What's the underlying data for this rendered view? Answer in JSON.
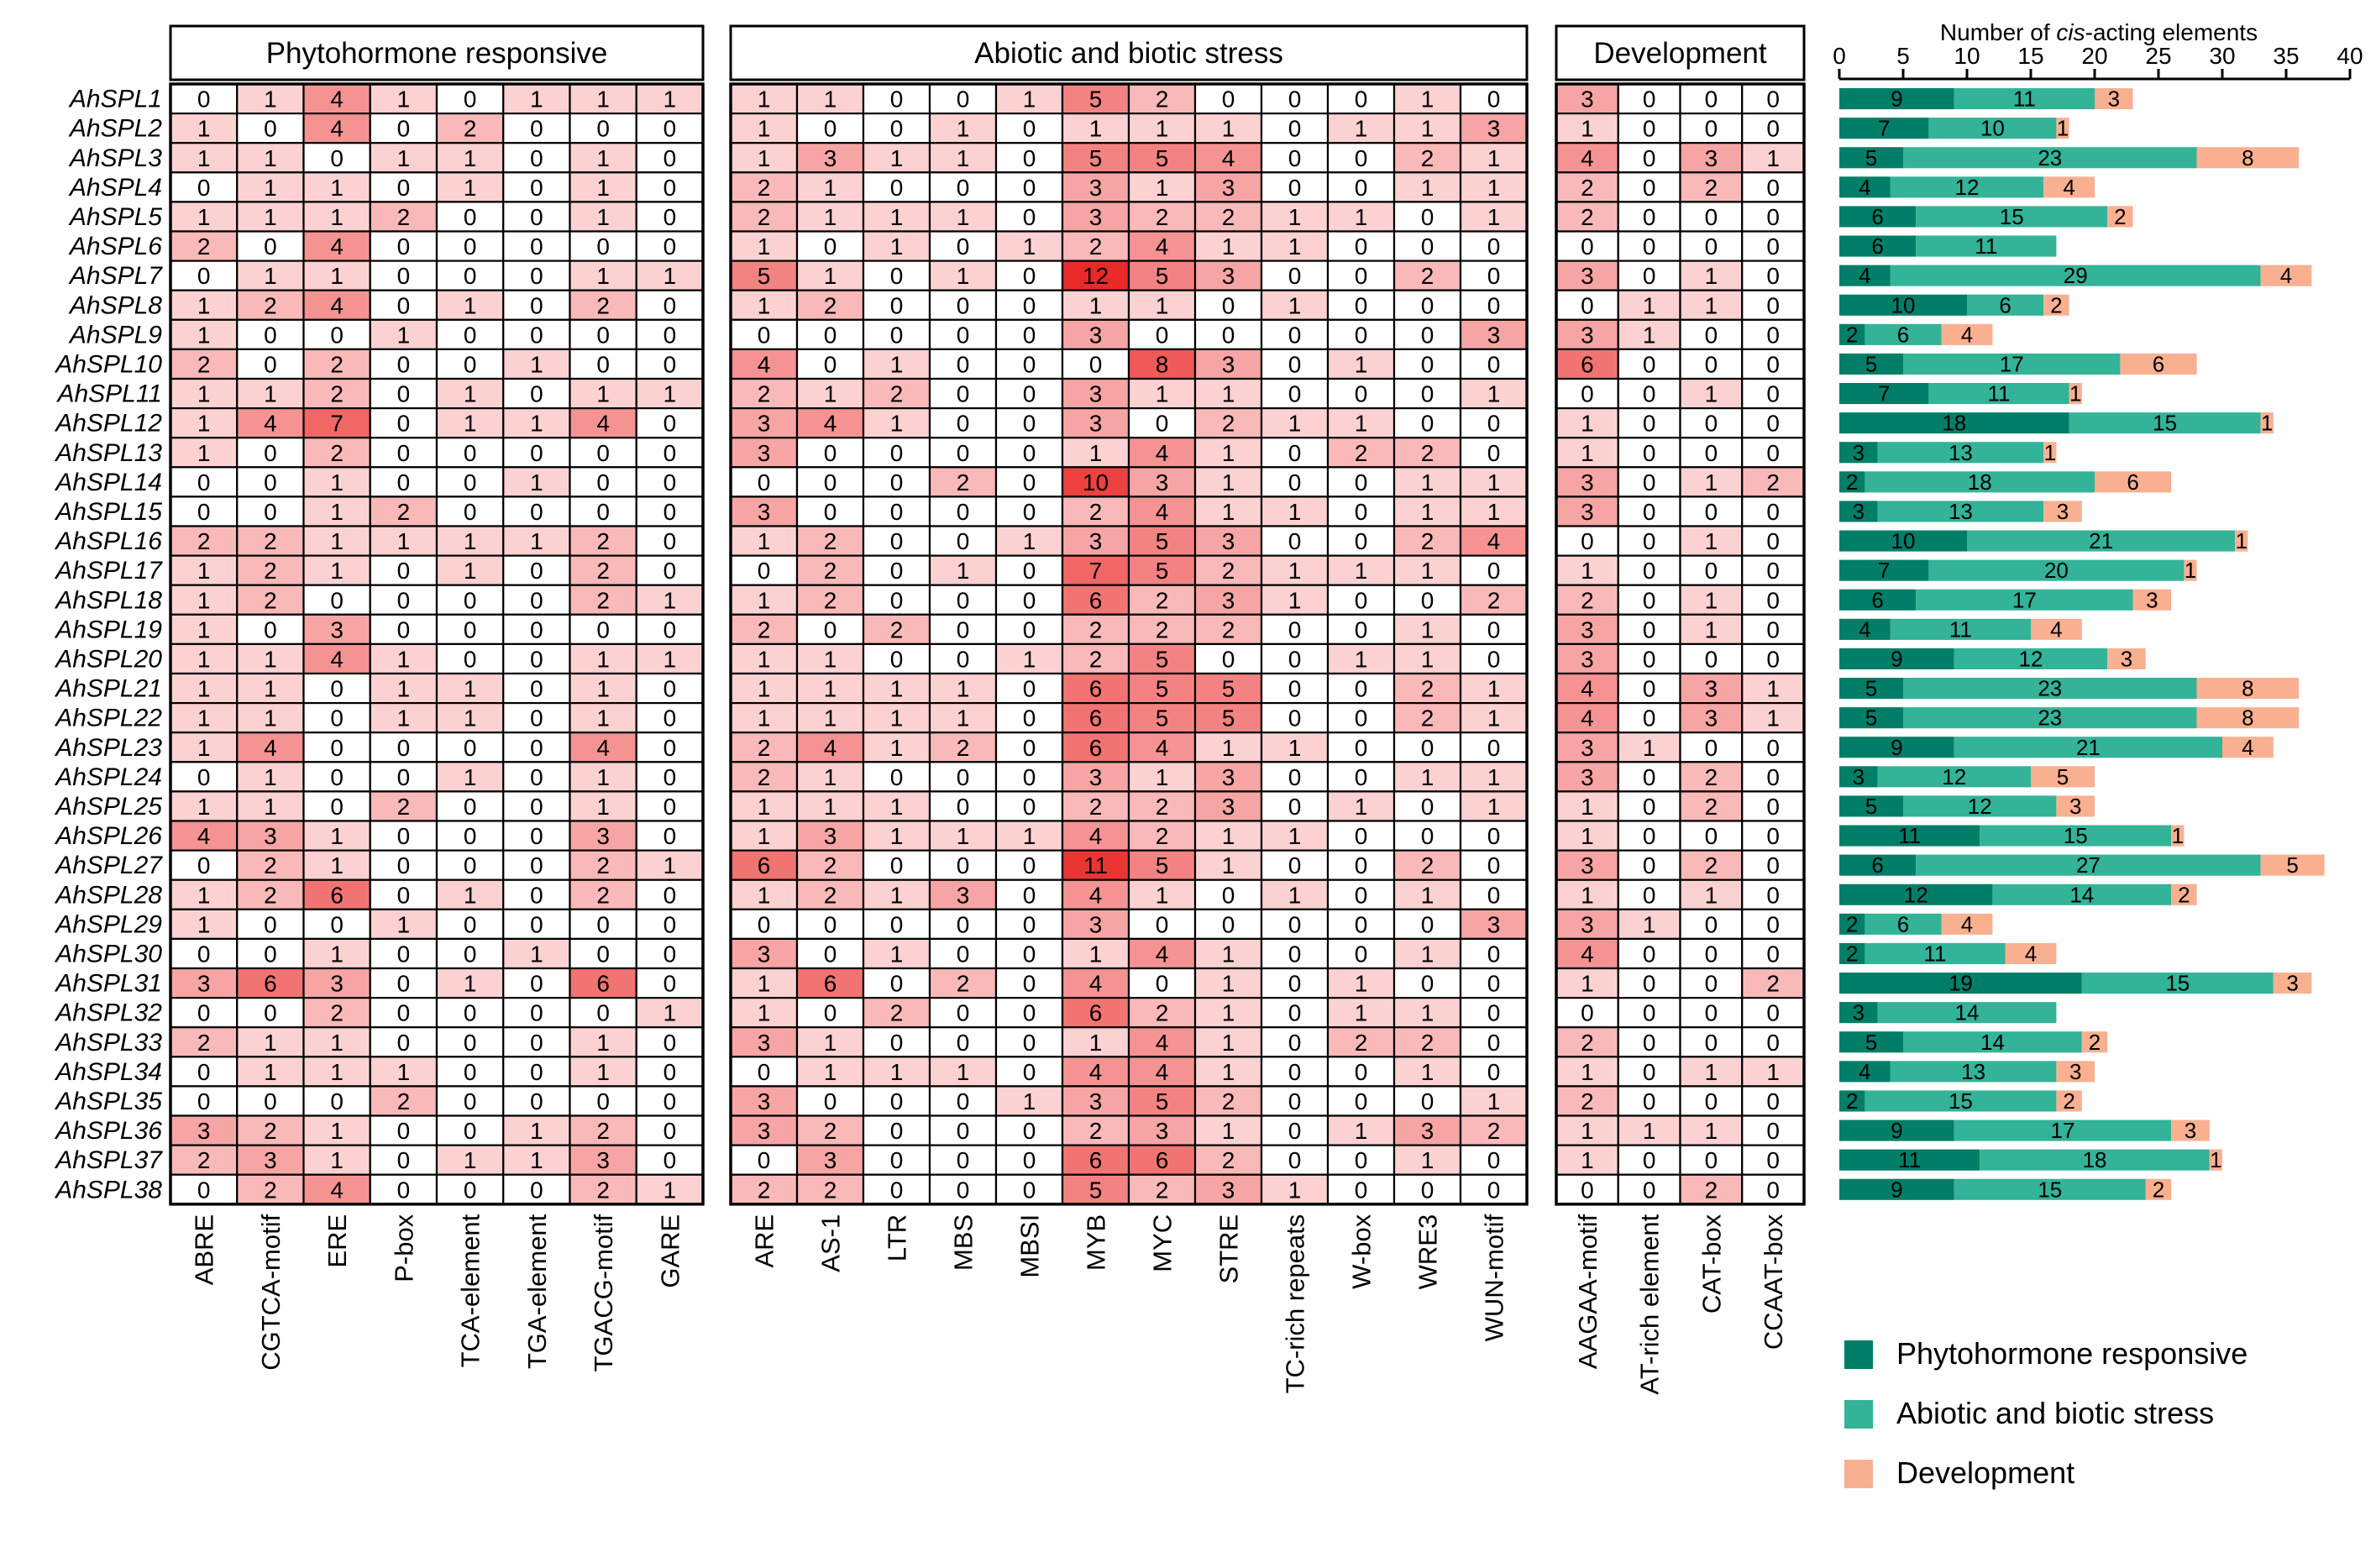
{
  "chart_data": [
    {
      "type": "heatmap",
      "title": "Phytohormone responsive",
      "columns": [
        "ABRE",
        "CGTCA-motif",
        "ERE",
        "P-box",
        "TCA-element",
        "TGA-element",
        "TGACG-motif",
        "GARE"
      ],
      "values": [
        [
          0,
          1,
          4,
          1,
          0,
          1,
          1,
          1
        ],
        [
          1,
          0,
          4,
          0,
          2,
          0,
          0,
          0
        ],
        [
          1,
          1,
          0,
          1,
          1,
          0,
          1,
          0
        ],
        [
          0,
          1,
          1,
          0,
          1,
          0,
          1,
          0
        ],
        [
          1,
          1,
          1,
          2,
          0,
          0,
          1,
          0
        ],
        [
          2,
          0,
          4,
          0,
          0,
          0,
          0,
          0
        ],
        [
          0,
          1,
          1,
          0,
          0,
          0,
          1,
          1
        ],
        [
          1,
          2,
          4,
          0,
          1,
          0,
          2,
          0
        ],
        [
          1,
          0,
          0,
          1,
          0,
          0,
          0,
          0
        ],
        [
          2,
          0,
          2,
          0,
          0,
          1,
          0,
          0
        ],
        [
          1,
          1,
          2,
          0,
          1,
          0,
          1,
          1
        ],
        [
          1,
          4,
          7,
          0,
          1,
          1,
          4,
          0
        ],
        [
          1,
          0,
          2,
          0,
          0,
          0,
          0,
          0
        ],
        [
          0,
          0,
          1,
          0,
          0,
          1,
          0,
          0
        ],
        [
          0,
          0,
          1,
          2,
          0,
          0,
          0,
          0
        ],
        [
          2,
          2,
          1,
          1,
          1,
          1,
          2,
          0
        ],
        [
          1,
          2,
          1,
          0,
          1,
          0,
          2,
          0
        ],
        [
          1,
          2,
          0,
          0,
          0,
          0,
          2,
          1
        ],
        [
          1,
          0,
          3,
          0,
          0,
          0,
          0,
          0
        ],
        [
          1,
          1,
          4,
          1,
          0,
          0,
          1,
          1
        ],
        [
          1,
          1,
          0,
          1,
          1,
          0,
          1,
          0
        ],
        [
          1,
          1,
          0,
          1,
          1,
          0,
          1,
          0
        ],
        [
          1,
          4,
          0,
          0,
          0,
          0,
          4,
          0
        ],
        [
          0,
          1,
          0,
          0,
          1,
          0,
          1,
          0
        ],
        [
          1,
          1,
          0,
          2,
          0,
          0,
          1,
          0
        ],
        [
          4,
          3,
          1,
          0,
          0,
          0,
          3,
          0
        ],
        [
          0,
          2,
          1,
          0,
          0,
          0,
          2,
          1
        ],
        [
          1,
          2,
          6,
          0,
          1,
          0,
          2,
          0
        ],
        [
          1,
          0,
          0,
          1,
          0,
          0,
          0,
          0
        ],
        [
          0,
          0,
          1,
          0,
          0,
          1,
          0,
          0
        ],
        [
          3,
          6,
          3,
          0,
          1,
          0,
          6,
          0
        ],
        [
          0,
          0,
          2,
          0,
          0,
          0,
          0,
          1
        ],
        [
          2,
          1,
          1,
          0,
          0,
          0,
          1,
          0
        ],
        [
          0,
          1,
          1,
          1,
          0,
          0,
          1,
          0
        ],
        [
          0,
          0,
          0,
          2,
          0,
          0,
          0,
          0
        ],
        [
          3,
          2,
          1,
          0,
          0,
          1,
          2,
          0
        ],
        [
          2,
          3,
          1,
          0,
          1,
          1,
          3,
          0
        ],
        [
          0,
          2,
          4,
          0,
          0,
          0,
          2,
          1
        ]
      ]
    },
    {
      "type": "heatmap",
      "title": "Abiotic and biotic stress",
      "columns": [
        "ARE",
        "AS-1",
        "LTR",
        "MBS",
        "MBSI",
        "MYB",
        "MYC",
        "STRE",
        "TC-rich repeats",
        "W-box",
        "WRE3",
        "WUN-motif"
      ],
      "values": [
        [
          1,
          1,
          0,
          0,
          1,
          5,
          2,
          0,
          0,
          0,
          1,
          0
        ],
        [
          1,
          0,
          0,
          1,
          0,
          1,
          1,
          1,
          0,
          1,
          1,
          3
        ],
        [
          1,
          3,
          1,
          1,
          0,
          5,
          5,
          4,
          0,
          0,
          2,
          1
        ],
        [
          2,
          1,
          0,
          0,
          0,
          3,
          1,
          3,
          0,
          0,
          1,
          1
        ],
        [
          2,
          1,
          1,
          1,
          0,
          3,
          2,
          2,
          1,
          1,
          0,
          1
        ],
        [
          1,
          0,
          1,
          0,
          1,
          2,
          4,
          1,
          1,
          0,
          0,
          0
        ],
        [
          5,
          1,
          0,
          1,
          0,
          12,
          5,
          3,
          0,
          0,
          2,
          0
        ],
        [
          1,
          2,
          0,
          0,
          0,
          1,
          1,
          0,
          1,
          0,
          0,
          0
        ],
        [
          0,
          0,
          0,
          0,
          0,
          3,
          0,
          0,
          0,
          0,
          0,
          3
        ],
        [
          4,
          0,
          1,
          0,
          0,
          0,
          8,
          3,
          0,
          1,
          0,
          0
        ],
        [
          2,
          1,
          2,
          0,
          0,
          3,
          1,
          1,
          0,
          0,
          0,
          1
        ],
        [
          3,
          4,
          1,
          0,
          0,
          3,
          0,
          2,
          1,
          1,
          0,
          0
        ],
        [
          3,
          0,
          0,
          0,
          0,
          1,
          4,
          1,
          0,
          2,
          2,
          0
        ],
        [
          0,
          0,
          0,
          2,
          0,
          10,
          3,
          1,
          0,
          0,
          1,
          1
        ],
        [
          3,
          0,
          0,
          0,
          0,
          2,
          4,
          1,
          1,
          0,
          1,
          1
        ],
        [
          1,
          2,
          0,
          0,
          1,
          3,
          5,
          3,
          0,
          0,
          2,
          4
        ],
        [
          0,
          2,
          0,
          1,
          0,
          7,
          5,
          2,
          1,
          1,
          1,
          0
        ],
        [
          1,
          2,
          0,
          0,
          0,
          6,
          2,
          3,
          1,
          0,
          0,
          2
        ],
        [
          2,
          0,
          2,
          0,
          0,
          2,
          2,
          2,
          0,
          0,
          1,
          0
        ],
        [
          1,
          1,
          0,
          0,
          1,
          2,
          5,
          0,
          0,
          1,
          1,
          0
        ],
        [
          1,
          1,
          1,
          1,
          0,
          6,
          5,
          5,
          0,
          0,
          2,
          1
        ],
        [
          1,
          1,
          1,
          1,
          0,
          6,
          5,
          5,
          0,
          0,
          2,
          1
        ],
        [
          2,
          4,
          1,
          2,
          0,
          6,
          4,
          1,
          1,
          0,
          0,
          0
        ],
        [
          2,
          1,
          0,
          0,
          0,
          3,
          1,
          3,
          0,
          0,
          1,
          1
        ],
        [
          1,
          1,
          1,
          0,
          0,
          2,
          2,
          3,
          0,
          1,
          0,
          1
        ],
        [
          1,
          3,
          1,
          1,
          1,
          4,
          2,
          1,
          1,
          0,
          0,
          0
        ],
        [
          6,
          2,
          0,
          0,
          0,
          11,
          5,
          1,
          0,
          0,
          2,
          0
        ],
        [
          1,
          2,
          1,
          3,
          0,
          4,
          1,
          0,
          1,
          0,
          1,
          0
        ],
        [
          0,
          0,
          0,
          0,
          0,
          3,
          0,
          0,
          0,
          0,
          0,
          3
        ],
        [
          3,
          0,
          1,
          0,
          0,
          1,
          4,
          1,
          0,
          0,
          1,
          0
        ],
        [
          1,
          6,
          0,
          2,
          0,
          4,
          0,
          1,
          0,
          1,
          0,
          0
        ],
        [
          1,
          0,
          2,
          0,
          0,
          6,
          2,
          1,
          0,
          1,
          1,
          0
        ],
        [
          3,
          1,
          0,
          0,
          0,
          1,
          4,
          1,
          0,
          2,
          2,
          0
        ],
        [
          0,
          1,
          1,
          1,
          0,
          4,
          4,
          1,
          0,
          0,
          1,
          0
        ],
        [
          3,
          0,
          0,
          0,
          1,
          3,
          5,
          2,
          0,
          0,
          0,
          1
        ],
        [
          3,
          2,
          0,
          0,
          0,
          2,
          3,
          1,
          0,
          1,
          3,
          2
        ],
        [
          0,
          3,
          0,
          0,
          0,
          6,
          6,
          2,
          0,
          0,
          1,
          0
        ],
        [
          2,
          2,
          0,
          0,
          0,
          5,
          2,
          3,
          1,
          0,
          0,
          0
        ]
      ]
    },
    {
      "type": "heatmap",
      "title": "Development",
      "columns": [
        "AAGAA-motif",
        "AT-rich element",
        "CAT-box",
        "CCAAT-box"
      ],
      "values": [
        [
          3,
          0,
          0,
          0
        ],
        [
          1,
          0,
          0,
          0
        ],
        [
          4,
          0,
          3,
          1
        ],
        [
          2,
          0,
          2,
          0
        ],
        [
          2,
          0,
          0,
          0
        ],
        [
          0,
          0,
          0,
          0
        ],
        [
          3,
          0,
          1,
          0
        ],
        [
          0,
          1,
          1,
          0
        ],
        [
          3,
          1,
          0,
          0
        ],
        [
          6,
          0,
          0,
          0
        ],
        [
          0,
          0,
          1,
          0
        ],
        [
          1,
          0,
          0,
          0
        ],
        [
          1,
          0,
          0,
          0
        ],
        [
          3,
          0,
          1,
          2
        ],
        [
          3,
          0,
          0,
          0
        ],
        [
          0,
          0,
          1,
          0
        ],
        [
          1,
          0,
          0,
          0
        ],
        [
          2,
          0,
          1,
          0
        ],
        [
          3,
          0,
          1,
          0
        ],
        [
          3,
          0,
          0,
          0
        ],
        [
          4,
          0,
          3,
          1
        ],
        [
          4,
          0,
          3,
          1
        ],
        [
          3,
          1,
          0,
          0
        ],
        [
          3,
          0,
          2,
          0
        ],
        [
          1,
          0,
          2,
          0
        ],
        [
          1,
          0,
          0,
          0
        ],
        [
          3,
          0,
          2,
          0
        ],
        [
          1,
          0,
          1,
          0
        ],
        [
          3,
          1,
          0,
          0
        ],
        [
          4,
          0,
          0,
          0
        ],
        [
          1,
          0,
          0,
          2
        ],
        [
          0,
          0,
          0,
          0
        ],
        [
          2,
          0,
          0,
          0
        ],
        [
          1,
          0,
          1,
          1
        ],
        [
          2,
          0,
          0,
          0
        ],
        [
          1,
          1,
          1,
          0
        ],
        [
          1,
          0,
          0,
          0
        ],
        [
          0,
          0,
          2,
          0
        ]
      ]
    },
    {
      "type": "bar",
      "orientation": "horizontal",
      "stacked": true,
      "xlabel_prefix": "Number of ",
      "xlabel_italic": "cis",
      "xlabel_suffix": "-acting elements",
      "xlim": [
        0,
        40
      ],
      "xticks": [
        0,
        5,
        10,
        15,
        20,
        25,
        30,
        35,
        40
      ],
      "series": [
        {
          "name": "Phytohormone responsive",
          "color": "#007e67",
          "values": [
            9,
            7,
            5,
            4,
            6,
            6,
            4,
            10,
            2,
            5,
            7,
            18,
            3,
            2,
            3,
            10,
            7,
            6,
            4,
            9,
            5,
            5,
            9,
            3,
            5,
            11,
            6,
            12,
            2,
            2,
            19,
            3,
            5,
            4,
            2,
            9,
            11,
            9
          ]
        },
        {
          "name": "Abiotic and biotic stress",
          "color": "#33b398",
          "values": [
            11,
            10,
            23,
            12,
            15,
            11,
            29,
            6,
            6,
            17,
            11,
            15,
            13,
            18,
            13,
            21,
            20,
            17,
            11,
            12,
            23,
            23,
            21,
            12,
            12,
            15,
            27,
            14,
            6,
            11,
            15,
            14,
            14,
            13,
            15,
            17,
            18,
            15
          ]
        },
        {
          "name": "Development",
          "color": "#f9b091",
          "values": [
            3,
            1,
            8,
            4,
            2,
            0,
            4,
            2,
            4,
            6,
            1,
            1,
            1,
            6,
            3,
            1,
            1,
            3,
            4,
            3,
            8,
            8,
            4,
            5,
            3,
            1,
            5,
            2,
            4,
            4,
            3,
            0,
            2,
            3,
            2,
            3,
            1,
            2
          ]
        }
      ],
      "legend_position": "bottom-right"
    }
  ],
  "genes": [
    "AhSPL1",
    "AhSPL2",
    "AhSPL3",
    "AhSPL4",
    "AhSPL5",
    "AhSPL6",
    "AhSPL7",
    "AhSPL8",
    "AhSPL9",
    "AhSPL10",
    "AhSPL11",
    "AhSPL12",
    "AhSPL13",
    "AhSPL14",
    "AhSPL15",
    "AhSPL16",
    "AhSPL17",
    "AhSPL18",
    "AhSPL19",
    "AhSPL20",
    "AhSPL21",
    "AhSPL22",
    "AhSPL23",
    "AhSPL24",
    "AhSPL25",
    "AhSPL26",
    "AhSPL27",
    "AhSPL28",
    "AhSPL29",
    "AhSPL30",
    "AhSPL31",
    "AhSPL32",
    "AhSPL33",
    "AhSPL34",
    "AhSPL35",
    "AhSPL36",
    "AhSPL37",
    "AhSPL38"
  ],
  "colors": {
    "heat_low": "#ffffff",
    "heat_high": "#ea2a28",
    "text": "#000000",
    "border": "#000000"
  }
}
